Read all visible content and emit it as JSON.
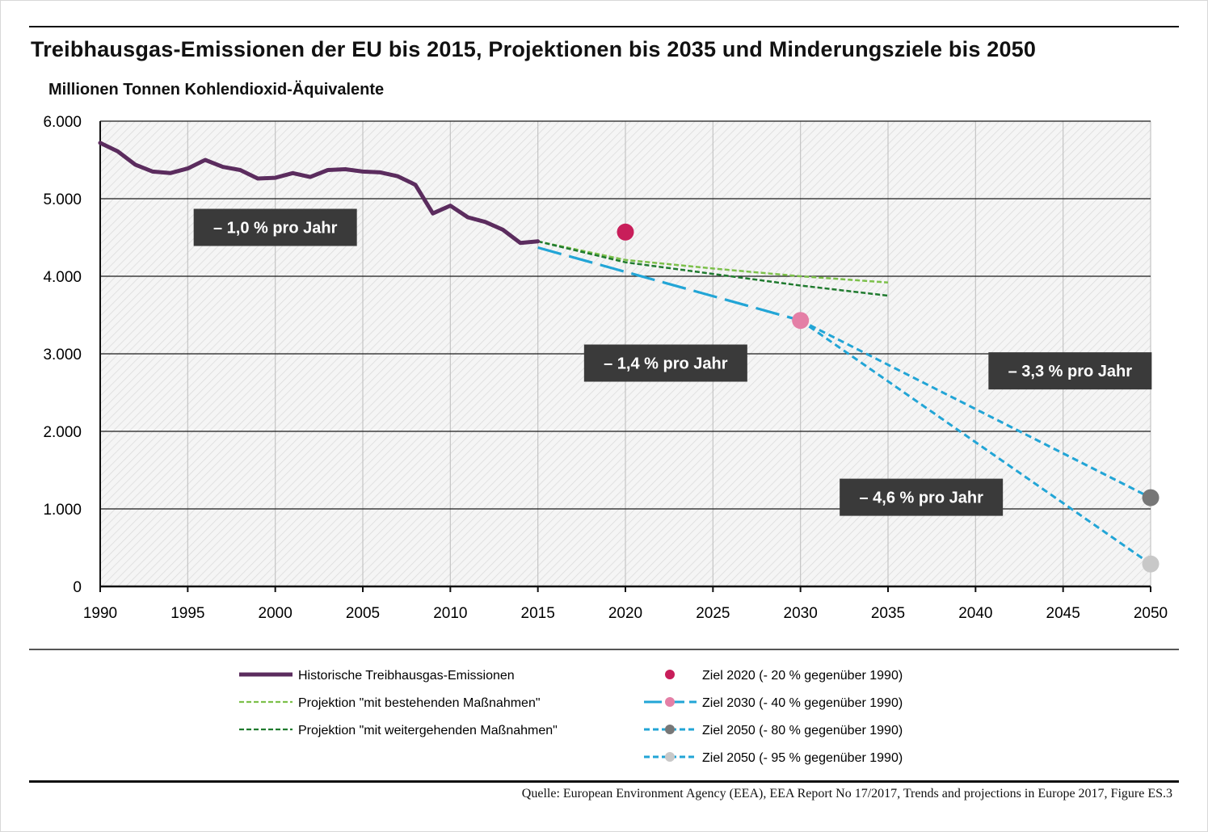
{
  "title": "Treibhausgas-Emissionen der EU bis 2015, Projektionen bis 2035 und Minderungsziele bis 2050",
  "unit_label": "Millionen Tonnen Kohlendioxid-Äquivalente",
  "source": "Quelle: European Environment Agency (EEA), EEA Report No 17/2017, Trends and projections in Europe 2017, Figure ES.3",
  "colors": {
    "historic": "#5b2c5e",
    "proj_existing": "#7cc04a",
    "proj_additional": "#1f7a2e",
    "target_line": "#22a5d6",
    "target_2020": "#c81e5a",
    "target_2030": "#e47fa6",
    "target_2050_80": "#777777",
    "target_2050_95": "#c8c8c8",
    "rate_box": "#3a3a3a"
  },
  "chart_data": {
    "type": "line",
    "xlim": [
      1990,
      2050
    ],
    "ylim": [
      0,
      6000
    ],
    "x_ticks": [
      "1990",
      "1995",
      "2000",
      "2005",
      "2010",
      "2015",
      "2020",
      "2025",
      "2030",
      "2035",
      "2040",
      "2045",
      "2050"
    ],
    "y_ticks": [
      "0",
      "1.000",
      "2.000",
      "3.000",
      "4.000",
      "5.000",
      "6.000"
    ],
    "grid": "horizontal and vertical",
    "series": [
      {
        "name": "Historische Treibhausgas-Emissionen",
        "style": "solid-thick",
        "x": [
          1990,
          1991,
          1992,
          1993,
          1994,
          1995,
          1996,
          1997,
          1998,
          1999,
          2000,
          2001,
          2002,
          2003,
          2004,
          2005,
          2006,
          2007,
          2008,
          2009,
          2010,
          2011,
          2012,
          2013,
          2014,
          2015
        ],
        "y": [
          5720,
          5610,
          5440,
          5350,
          5330,
          5390,
          5500,
          5410,
          5370,
          5260,
          5270,
          5330,
          5280,
          5370,
          5380,
          5350,
          5340,
          5290,
          5180,
          4810,
          4910,
          4760,
          4700,
          4600,
          4430,
          4450
        ]
      },
      {
        "name": "Projektion \"mit bestehenden Maßnahmen\"",
        "style": "dashed",
        "x": [
          2015,
          2020,
          2025,
          2030,
          2035
        ],
        "y": [
          4450,
          4210,
          4100,
          4000,
          3920
        ]
      },
      {
        "name": "Projektion \"mit weitergehenden Maßnahmen\"",
        "style": "dashed",
        "x": [
          2015,
          2020,
          2025,
          2030,
          2035
        ],
        "y": [
          4450,
          4180,
          4030,
          3880,
          3750
        ]
      },
      {
        "name": "Ziel 2030 (- 40 % gegenüber 1990)",
        "style": "long-dash",
        "x": [
          2015,
          2030
        ],
        "y": [
          4370,
          3430
        ]
      },
      {
        "name": "Ziel 2050 (- 80 % gegenüber 1990)",
        "style": "short-dash",
        "x": [
          2030,
          2050
        ],
        "y": [
          3430,
          1145
        ]
      },
      {
        "name": "Ziel 2050 (- 95 % gegenüber 1990)",
        "style": "short-dash",
        "x": [
          2030,
          2050
        ],
        "y": [
          3430,
          290
        ]
      }
    ],
    "points": [
      {
        "name": "Ziel 2020 (- 20 % gegenüber 1990)",
        "x": 2020,
        "y": 4570
      },
      {
        "name": "Ziel 2030",
        "x": 2030,
        "y": 3430
      },
      {
        "name": "Ziel 2050 (- 80 % gegenüber 1990)",
        "x": 2050,
        "y": 1145
      },
      {
        "name": "Ziel 2050 (- 95 % gegenüber 1990)",
        "x": 2050,
        "y": 290
      }
    ],
    "annotations": [
      {
        "text": "– 1,0 % pro Jahr",
        "x": 2000,
        "y": 4630
      },
      {
        "text": "– 1,4 % pro Jahr",
        "x": 2022.3,
        "y": 2880
      },
      {
        "text": "– 3,3 % pro Jahr",
        "x": 2045.4,
        "y": 2780
      },
      {
        "text": "– 4,6 % pro Jahr",
        "x": 2036.9,
        "y": 1150
      }
    ]
  },
  "legend": {
    "left": [
      {
        "label": "Historische Treibhausgas-Emissionen",
        "symbol": "solid-thick"
      },
      {
        "label": "Projektion \"mit bestehenden Maßnahmen\"",
        "symbol": "dashed-light-green"
      },
      {
        "label": "Projektion \"mit weitergehenden Maßnahmen\"",
        "symbol": "dashed-dark-green"
      }
    ],
    "right": [
      {
        "label": "Ziel 2020 (- 20 % gegenüber 1990)",
        "symbol": "dot-crimson"
      },
      {
        "label": "Ziel 2030 (- 40 % gegenüber 1990)",
        "symbol": "long-dash-blue-pink-dot"
      },
      {
        "label": "Ziel 2050 (- 80 % gegenüber 1990)",
        "symbol": "short-dash-blue-grey-dot"
      },
      {
        "label": "Ziel 2050 (- 95 % gegenüber 1990)",
        "symbol": "short-dash-blue-light-dot"
      }
    ]
  }
}
